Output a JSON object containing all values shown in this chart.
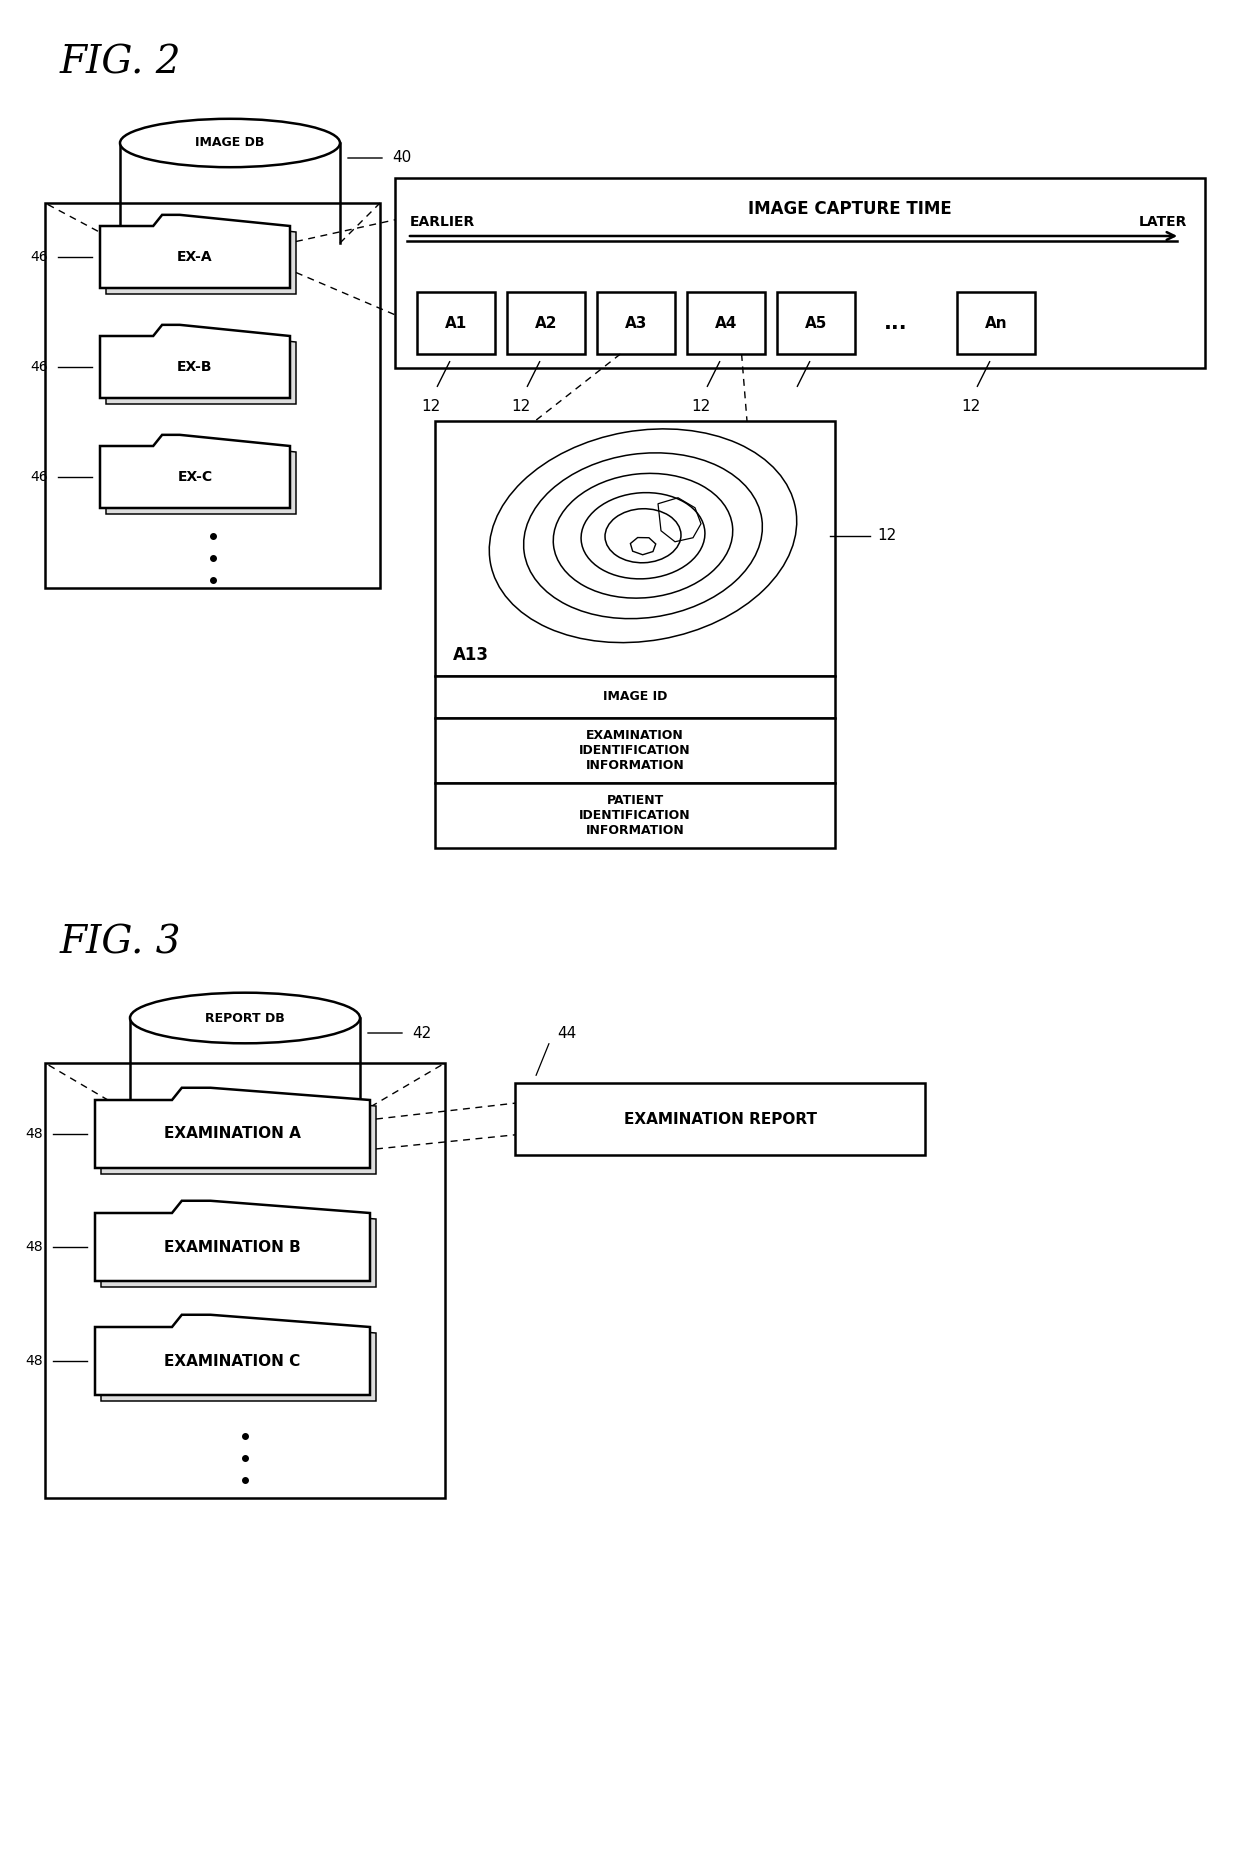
{
  "fig2_title": "FIG. 2",
  "fig3_title": "FIG. 3",
  "bg_color": "#ffffff",
  "line_color": "#000000",
  "imagedb_label": "IMAGE DB",
  "imagedb_ref": "40",
  "reportdb_label": "REPORT DB",
  "reportdb_ref": "42",
  "image_capture_time": "IMAGE CAPTURE TIME",
  "earlier": "EARLIER",
  "later": "LATER",
  "image_boxes": [
    "A1",
    "A2",
    "A3",
    "A4",
    "A5",
    "...",
    "An"
  ],
  "image_ref": "12",
  "folder_labels_fig2": [
    "EX-A",
    "EX-B",
    "EX-C"
  ],
  "folder_ref_fig2": "46",
  "folder_labels_fig3": [
    "EXAMINATION A",
    "EXAMINATION B",
    "EXAMINATION C"
  ],
  "folder_ref_fig3": "48",
  "image_id_label": "A13",
  "image_12_ref": "12",
  "metadata_rows": [
    "IMAGE ID",
    "EXAMINATION\nIDENTIFICATION\nINFORMATION",
    "PATIENT\nIDENTIFICATION\nINFORMATION"
  ],
  "exam_report_label": "EXAMINATION REPORT",
  "exam_report_ref": "44"
}
